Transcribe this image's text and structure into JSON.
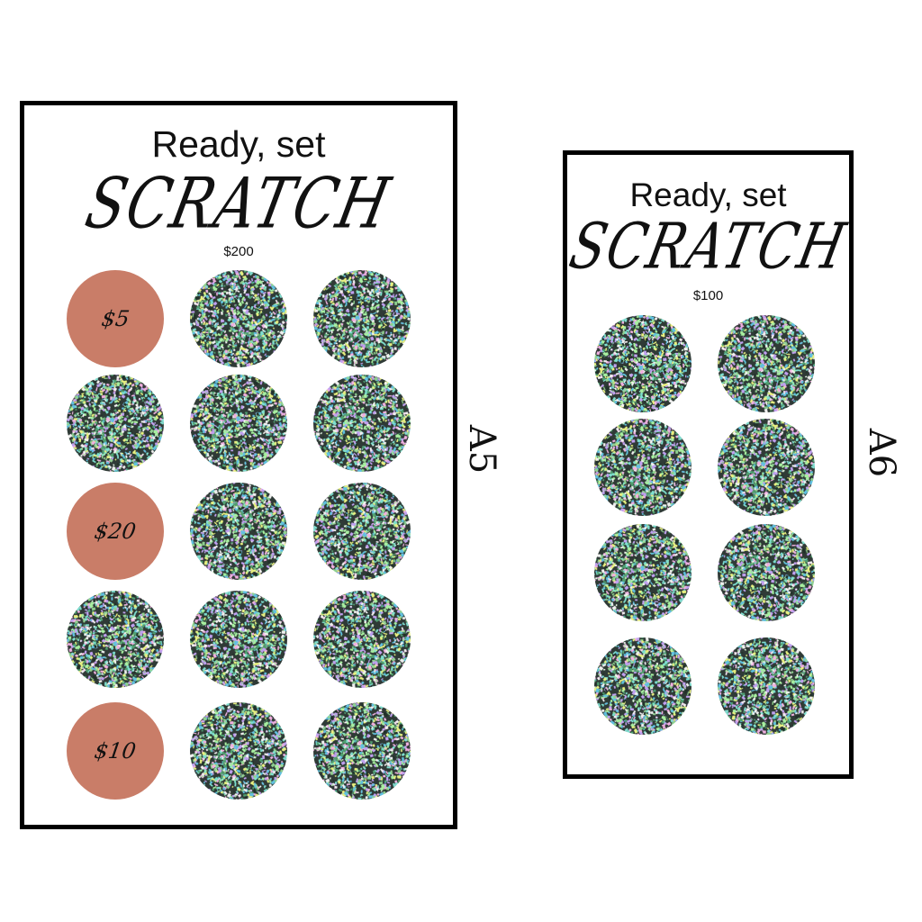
{
  "colors": {
    "prize": "#c97d68",
    "border": "#000000"
  },
  "cards": [
    {
      "id": "a5",
      "size_label": "A5",
      "title": "Ready, set",
      "script": "SCRATCH",
      "amount": "$200",
      "columns": 3,
      "circles": [
        "$5",
        null,
        null,
        null,
        null,
        null,
        "$20",
        null,
        null,
        null,
        null,
        null,
        "$10",
        null,
        null
      ]
    },
    {
      "id": "a6",
      "size_label": "A6",
      "title": "Ready, set",
      "script": "SCRATCH",
      "amount": "$100",
      "columns": 2,
      "circles": [
        null,
        null,
        null,
        null,
        null,
        null,
        null,
        null
      ]
    }
  ]
}
